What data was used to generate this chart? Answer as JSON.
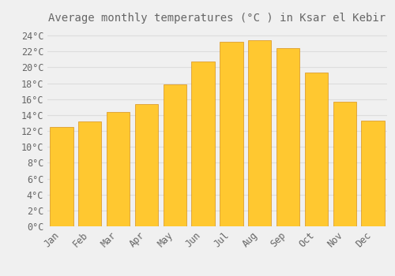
{
  "title": "Average monthly temperatures (°C ) in Ksar el Kebir",
  "months": [
    "Jan",
    "Feb",
    "Mar",
    "Apr",
    "May",
    "Jun",
    "Jul",
    "Aug",
    "Sep",
    "Oct",
    "Nov",
    "Dec"
  ],
  "values": [
    12.5,
    13.2,
    14.4,
    15.4,
    17.9,
    20.7,
    23.2,
    23.4,
    22.4,
    19.3,
    15.7,
    13.3
  ],
  "bar_color_top": "#FFC830",
  "bar_color_bottom": "#E89000",
  "bar_edge_color": "#D08000",
  "background_color": "#F0F0F0",
  "grid_color": "#DDDDDD",
  "text_color": "#666666",
  "ylim": [
    0,
    25
  ],
  "yticks": [
    0,
    2,
    4,
    6,
    8,
    10,
    12,
    14,
    16,
    18,
    20,
    22,
    24
  ],
  "title_fontsize": 10,
  "tick_fontsize": 8.5,
  "font_family": "monospace",
  "bar_width": 0.82,
  "figsize": [
    5.0,
    3.5
  ],
  "dpi": 100
}
